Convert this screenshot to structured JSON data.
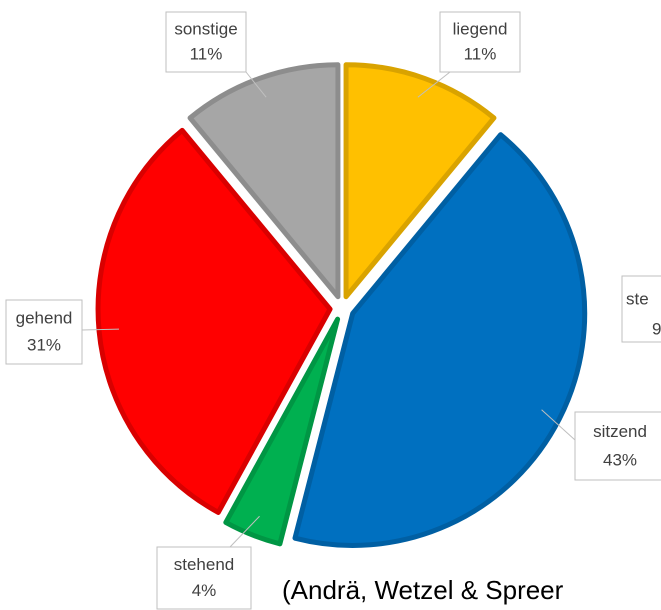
{
  "chart_data": {
    "type": "pie",
    "categories": [
      "liegend",
      "sitzend",
      "stehend",
      "gehend",
      "sonstige"
    ],
    "values": [
      11,
      43,
      4,
      31,
      11
    ],
    "value_labels": [
      "11%",
      "43%",
      "4%",
      "31%",
      "11%"
    ],
    "colors": [
      "#ffc000",
      "#0070c0",
      "#00b050",
      "#ff0000",
      "#a6a6a6"
    ],
    "annotations": [
      "ste",
      "9",
      "(Andrä, Wetzel & Spreer"
    ]
  }
}
